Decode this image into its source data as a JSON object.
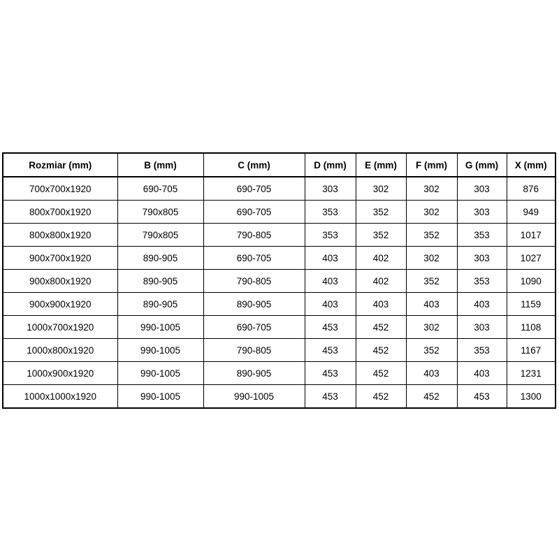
{
  "table": {
    "headers": [
      "Rozmiar (mm)",
      "B (mm)",
      "C (mm)",
      "D (mm)",
      "E (mm)",
      "F (mm)",
      "G (mm)",
      "X (mm)"
    ],
    "rows": [
      [
        "700x700x1920",
        "690-705",
        "690-705",
        "303",
        "302",
        "302",
        "303",
        "876"
      ],
      [
        "800x700x1920",
        "790x805",
        "690-705",
        "353",
        "352",
        "302",
        "303",
        "949"
      ],
      [
        "800x800x1920",
        "790x805",
        "790-805",
        "353",
        "352",
        "352",
        "353",
        "1017"
      ],
      [
        "900x700x1920",
        "890-905",
        "690-705",
        "403",
        "402",
        "302",
        "303",
        "1027"
      ],
      [
        "900x800x1920",
        "890-905",
        "790-805",
        "403",
        "402",
        "352",
        "353",
        "1090"
      ],
      [
        "900x900x1920",
        "890-905",
        "890-905",
        "403",
        "403",
        "403",
        "403",
        "1159"
      ],
      [
        "1000x700x1920",
        "990-1005",
        "690-705",
        "453",
        "452",
        "302",
        "303",
        "1108"
      ],
      [
        "1000x800x1920",
        "990-1005",
        "790-805",
        "453",
        "452",
        "352",
        "353",
        "1167"
      ],
      [
        "1000x900x1920",
        "990-1005",
        "890-905",
        "453",
        "452",
        "403",
        "403",
        "1231"
      ],
      [
        "1000x1000x1920",
        "990-1005",
        "990-1005",
        "453",
        "452",
        "452",
        "453",
        "1300"
      ]
    ],
    "colors": {
      "border": "#000000",
      "background": "#ffffff",
      "text": "#000000"
    }
  }
}
